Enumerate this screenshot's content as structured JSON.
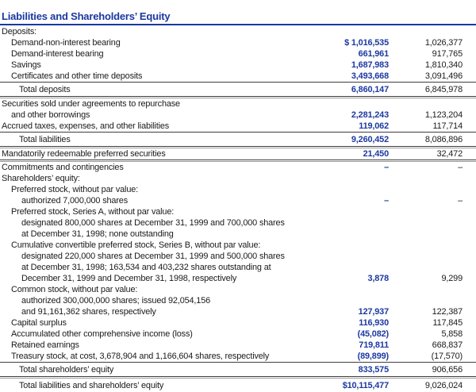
{
  "document": {
    "title": "Liabilities and Shareholders’ Equity",
    "colors": {
      "accent_blue": "#1b38a0",
      "text": "#1a1a1a",
      "rule_dark": "#3e3e3e",
      "rule_light": "#9b9b9b"
    },
    "table": {
      "rows": [
        {
          "label": "Deposits:",
          "indent": 0,
          "v1999": "",
          "v1998": ""
        },
        {
          "label": "Demand-non-interest bearing",
          "indent": 1,
          "v1999": "$ 1,016,535",
          "v1998": "1,026,377"
        },
        {
          "label": "Demand-interest bearing",
          "indent": 1,
          "v1999": "661,961",
          "v1998": "917,765"
        },
        {
          "label": "Savings",
          "indent": 1,
          "v1999": "1,687,983",
          "v1998": "1,810,340"
        },
        {
          "label": "Certificates and other time deposits",
          "indent": 1,
          "v1999": "3,493,668",
          "v1998": "3,091,496"
        },
        {
          "label": "Total deposits",
          "indent": 3,
          "v1999": "6,860,147",
          "v1998": "6,845,978",
          "rule_above": "single",
          "rule_below": "double"
        },
        {
          "label": "Securities sold under agreements to repurchase",
          "indent": 0,
          "v1999": "",
          "v1998": ""
        },
        {
          "label": "and other borrowings",
          "indent": 1,
          "v1999": "2,281,243",
          "v1998": "1,123,204"
        },
        {
          "label": "Accrued taxes, expenses, and other liabilities",
          "indent": 0,
          "v1999": "119,062",
          "v1998": "117,714"
        },
        {
          "label": "Total liabilities",
          "indent": 3,
          "v1999": "9,260,452",
          "v1998": "8,086,896",
          "rule_above": "single",
          "rule_below": "double"
        },
        {
          "label": "Mandatorily redeemable preferred securities",
          "indent": 0,
          "v1999": "21,450",
          "v1998": "32,472",
          "rule_below": "double"
        },
        {
          "label": "Commitments and contingencies",
          "indent": 0,
          "v1999": "–",
          "v1998": "–"
        },
        {
          "label": "Shareholders’ equity:",
          "indent": 0,
          "v1999": "",
          "v1998": ""
        },
        {
          "label": "Preferred stock, without par value:",
          "indent": 1,
          "v1999": "",
          "v1998": ""
        },
        {
          "label": "authorized 7,000,000 shares",
          "indent": 2,
          "v1999": "–",
          "v1998": "–"
        },
        {
          "label": "Preferred stock, Series A, without par value:",
          "indent": 1,
          "v1999": "",
          "v1998": ""
        },
        {
          "label": "designated 800,000 shares at December 31, 1999 and 700,000 shares",
          "indent": 2,
          "v1999": "",
          "v1998": ""
        },
        {
          "label": "at December 31, 1998; none outstanding",
          "indent": 2,
          "v1999": "",
          "v1998": ""
        },
        {
          "label": "Cumulative convertible preferred stock, Series B, without par value:",
          "indent": 1,
          "v1999": "",
          "v1998": ""
        },
        {
          "label": "designated 220,000 shares at December 31, 1999 and 500,000 shares",
          "indent": 2,
          "v1999": "",
          "v1998": ""
        },
        {
          "label": "at December 31, 1998; 163,534 and 403,232 shares outstanding at",
          "indent": 2,
          "v1999": "",
          "v1998": ""
        },
        {
          "label": "December 31, 1999 and December 31, 1998, respectively",
          "indent": 2,
          "v1999": "3,878",
          "v1998": "9,299"
        },
        {
          "label": "Common stock, without par value:",
          "indent": 1,
          "v1999": "",
          "v1998": ""
        },
        {
          "label": "authorized 300,000,000 shares; issued 92,054,156",
          "indent": 2,
          "v1999": "",
          "v1998": ""
        },
        {
          "label": "and 91,161,362 shares, respectively",
          "indent": 2,
          "v1999": "127,937",
          "v1998": "122,387"
        },
        {
          "label": "Capital surplus",
          "indent": 1,
          "v1999": "116,930",
          "v1998": "117,845"
        },
        {
          "label": "Accumulated other comprehensive income (loss)",
          "indent": 1,
          "v1999": "(45,082)",
          "v1998": "5,858"
        },
        {
          "label": "Retained earnings",
          "indent": 1,
          "v1999": "719,811",
          "v1998": "668,837"
        },
        {
          "label": "Treasury stock, at cost, 3,678,904 and 1,166,604 shares, respectively",
          "indent": 1,
          "v1999": "(89,899)",
          "v1998": "(17,570)"
        },
        {
          "label": "Total shareholders’ equity",
          "indent": 3,
          "v1999": "833,575",
          "v1998": "906,656",
          "rule_above": "single",
          "rule_below": "double"
        },
        {
          "label": "Total liabilities and shareholders’ equity",
          "indent": 3,
          "v1999": "$10,115,477",
          "v1998": "9,026,024",
          "rule_below": "final"
        }
      ]
    }
  }
}
